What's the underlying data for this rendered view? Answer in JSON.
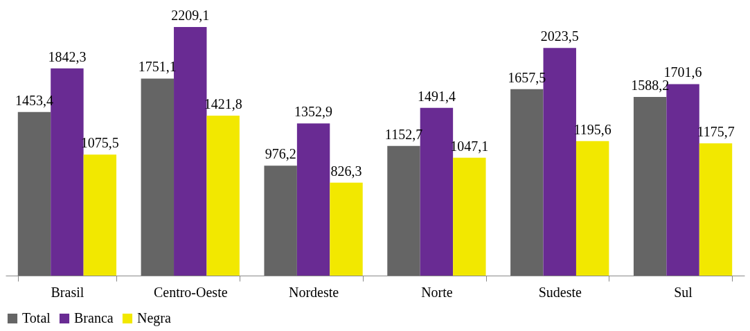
{
  "chart_data": {
    "type": "bar",
    "categories": [
      "Brasil",
      "Centro-Oeste",
      "Nordeste",
      "Norte",
      "Sudeste",
      "Sul"
    ],
    "series": [
      {
        "name": "Total",
        "color": "#656565",
        "values": [
          1453.4,
          1751.1,
          976.2,
          1152.7,
          1657.5,
          1588.2
        ],
        "value_labels": [
          "1453,4",
          "1751,1",
          "976,2",
          "1152,7",
          "1657,5",
          "1588,2"
        ]
      },
      {
        "name": "Branca",
        "color": "#692b93",
        "values": [
          1842.3,
          2209.1,
          1352.9,
          1491.4,
          2023.5,
          1701.6
        ],
        "value_labels": [
          "1842,3",
          "2209,1",
          "1352,9",
          "1491,4",
          "2023,5",
          "1701,6"
        ]
      },
      {
        "name": "Negra",
        "color": "#f2e800",
        "values": [
          1075.5,
          1421.8,
          826.3,
          1047.1,
          1195.6,
          1175.7
        ],
        "value_labels": [
          "1075,5",
          "1421,8",
          "826,3",
          "1047,1",
          "1195,6",
          "1175,7"
        ]
      }
    ],
    "legend": "bottom",
    "grid": false
  }
}
